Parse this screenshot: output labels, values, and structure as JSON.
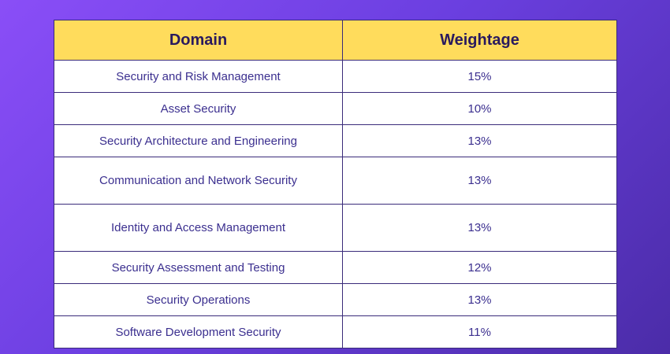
{
  "table": {
    "headers": [
      "Domain",
      "Weightage"
    ],
    "rows": [
      {
        "domain": "Security and Risk Management",
        "weightage": "15%"
      },
      {
        "domain": "Asset Security",
        "weightage": "10%"
      },
      {
        "domain": "Security Architecture and Engineering",
        "weightage": "13%"
      },
      {
        "domain": "Communication and Network Security",
        "weightage": "13%"
      },
      {
        "domain": "Identity and Access Management",
        "weightage": "13%"
      },
      {
        "domain": "Security Assessment and Testing",
        "weightage": "12%"
      },
      {
        "domain": "Security Operations",
        "weightage": "13%"
      },
      {
        "domain": "Software Development Security",
        "weightage": "11%"
      }
    ]
  },
  "colors": {
    "header_bg": "#ffdc5c",
    "text": "#3b2f8f",
    "background_start": "#8a4ef7",
    "background_end": "#4b2ca8"
  }
}
